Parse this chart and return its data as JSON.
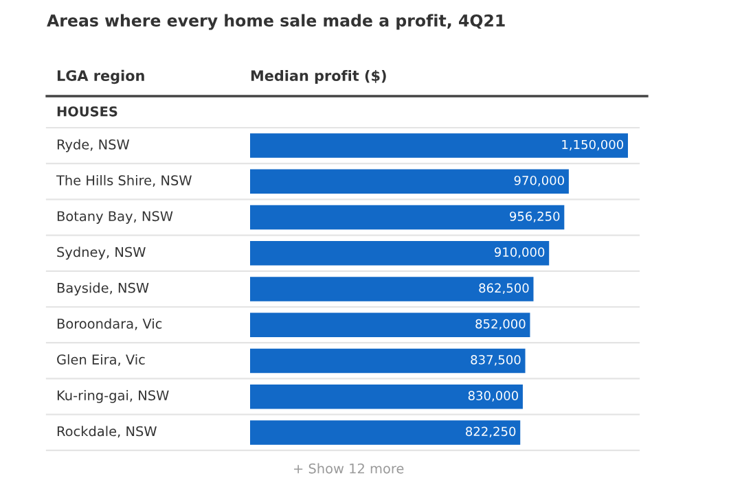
{
  "chart_data": {
    "type": "bar",
    "orientation": "horizontal",
    "title": "Areas where every home sale made a profit, 4Q21",
    "ylabel": "LGA region",
    "xlabel": "Median profit ($)",
    "categories": [
      "Ryde, NSW",
      "The Hills Shire, NSW",
      "Botany Bay, NSW",
      "Sydney, NSW",
      "Bayside, NSW",
      "Boroondara, Vic",
      "Glen Eira, Vic",
      "Ku-ring-gai, NSW",
      "Rockdale, NSW"
    ],
    "values": [
      1150000,
      970000,
      956250,
      910000,
      862500,
      852000,
      837500,
      830000,
      822250
    ],
    "value_labels": [
      "1,150,000",
      "970,000",
      "956,250",
      "910,000",
      "862,500",
      "852,000",
      "837,500",
      "830,000",
      "822,250"
    ],
    "color": "#1269c7",
    "annotations": [
      "HOUSES",
      "+ Show 12 more"
    ]
  }
}
